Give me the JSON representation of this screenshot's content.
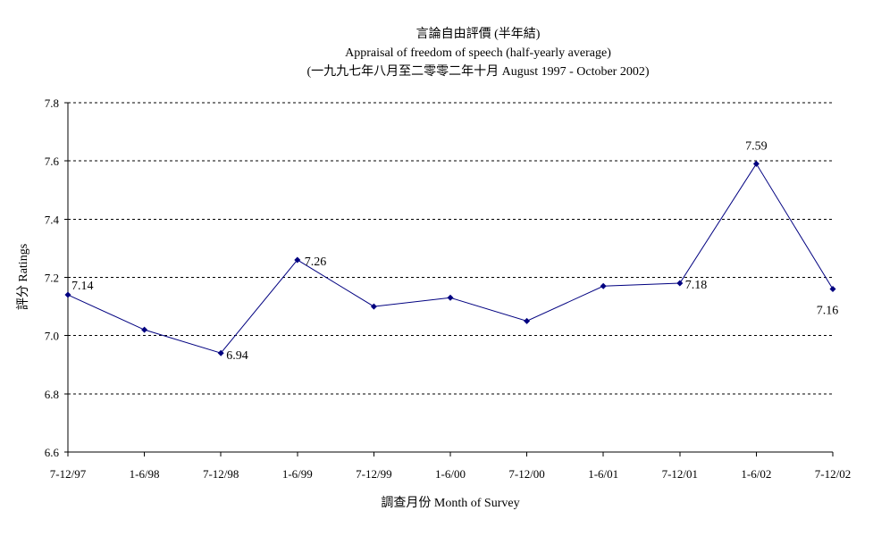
{
  "chart_data": {
    "type": "line",
    "title": "言論自由評價 (半年結)",
    "subtitle": "Appraisal of freedom of speech (half-yearly average)",
    "subtitle2": "(一九九七年八月至二零零二年十月 August 1997 - October 2002)",
    "xlabel": "調查月份 Month of Survey",
    "ylabel": "評分 Ratings",
    "categories": [
      "7-12/97",
      "1-6/98",
      "7-12/98",
      "1-6/99",
      "7-12/99",
      "1-6/00",
      "7-12/00",
      "1-6/01",
      "7-12/01",
      "1-6/02",
      "7-12/02"
    ],
    "series": [
      {
        "values": [
          7.14,
          7.02,
          6.94,
          7.26,
          7.1,
          7.13,
          7.05,
          7.17,
          7.18,
          7.59,
          7.16
        ]
      }
    ],
    "data_labels": [
      {
        "index": 0,
        "text": "7.14"
      },
      {
        "index": 2,
        "text": "6.94"
      },
      {
        "index": 3,
        "text": "7.26"
      },
      {
        "index": 8,
        "text": "7.18"
      },
      {
        "index": 9,
        "text": "7.59"
      },
      {
        "index": 10,
        "text": "7.16"
      }
    ],
    "ylim": [
      6.6,
      7.8
    ],
    "yticks": [
      "6.6",
      "6.8",
      "7.0",
      "7.2",
      "7.4",
      "7.6",
      "7.8"
    ],
    "grid": true,
    "line_color": "#000080",
    "marker_color": "#000080"
  }
}
